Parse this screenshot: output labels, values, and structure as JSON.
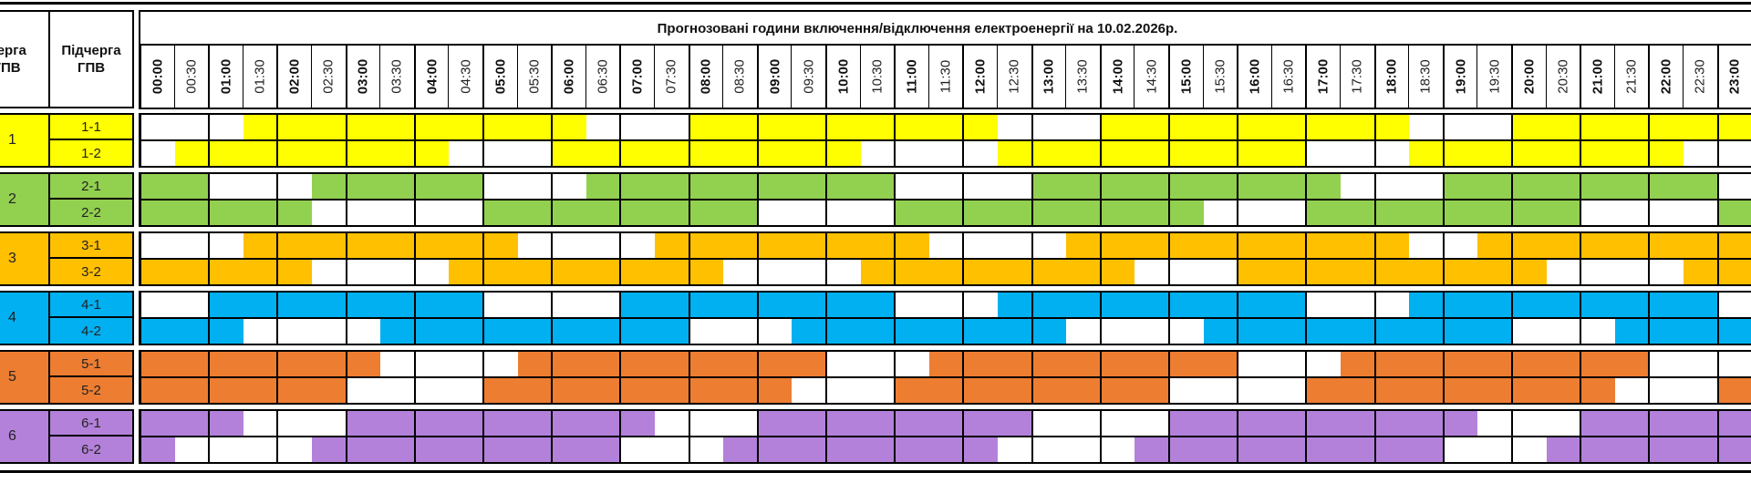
{
  "header": {
    "queue_label": "Черга ГПВ",
    "subqueue_label": "Підчерга ГПВ",
    "title": "Прогнозовані години включення/відключення електроенергії на 10.02.2026р."
  },
  "times": [
    "00:00",
    "00:30",
    "01:00",
    "01:30",
    "02:00",
    "02:30",
    "03:00",
    "03:30",
    "04:00",
    "04:30",
    "05:00",
    "05:30",
    "06:00",
    "06:30",
    "07:00",
    "07:30",
    "08:00",
    "08:30",
    "09:00",
    "09:30",
    "10:00",
    "10:30",
    "11:00",
    "11:30",
    "12:00",
    "12:30",
    "13:00",
    "13:30",
    "14:00",
    "14:30",
    "15:00",
    "15:30",
    "16:00",
    "16:30",
    "17:00",
    "17:30",
    "18:00",
    "18:30",
    "19:00",
    "19:30",
    "20:00",
    "20:30",
    "21:00",
    "21:30",
    "22:00",
    "22:30",
    "23:00"
  ],
  "legend_note": "1 = filled (colored) half-hour, 0 = white",
  "groups": [
    {
      "label": "1",
      "color": "#FFFF00",
      "subgroups": [
        {
          "label": "1-1",
          "slots": "00011111111110001111111110001111111110001111111"
        },
        {
          "label": "1-2",
          "slots": "01111111100011111111100001111111110001111111100"
        }
      ]
    },
    {
      "label": "2",
      "color": "#92D050",
      "subgroups": [
        {
          "label": "2-1",
          "slots": "11000111110001111111110000111111111000111111110"
        },
        {
          "label": "2-2",
          "slots": "11111000001111111100001111111110001111111100001"
        }
      ]
    },
    {
      "label": "3",
      "color": "#FFC000",
      "subgroups": [
        {
          "label": "3-1",
          "slots": "00011111111000011111111000011111111110011111111"
        },
        {
          "label": "3-2",
          "slots": "11111000011111111000011111111000111111111000011"
        }
      ]
    },
    {
      "label": "4",
      "color": "#00B0F0",
      "subgroups": [
        {
          "label": "4-1",
          "slots": "00111111110000111111110001111111110001111111110"
        },
        {
          "label": "4-2",
          "slots": "11100001111111110001111111100001111111110001111"
        }
      ]
    },
    {
      "label": "5",
      "color": "#ED7D31",
      "subgroups": [
        {
          "label": "5-1",
          "slots": "11111110000111111111000111111111000111111111000"
        },
        {
          "label": "5-2",
          "slots": "11111100001111111110001111111100001111111110001"
        }
      ]
    },
    {
      "label": "6",
      "color": "#B381DA",
      "subgroups": [
        {
          "label": "6-1",
          "slots": "11100011111111100011111111000011111111100011111"
        },
        {
          "label": "6-2",
          "slots": "10000111111111000111111110000111111111000111111"
        }
      ]
    }
  ]
}
